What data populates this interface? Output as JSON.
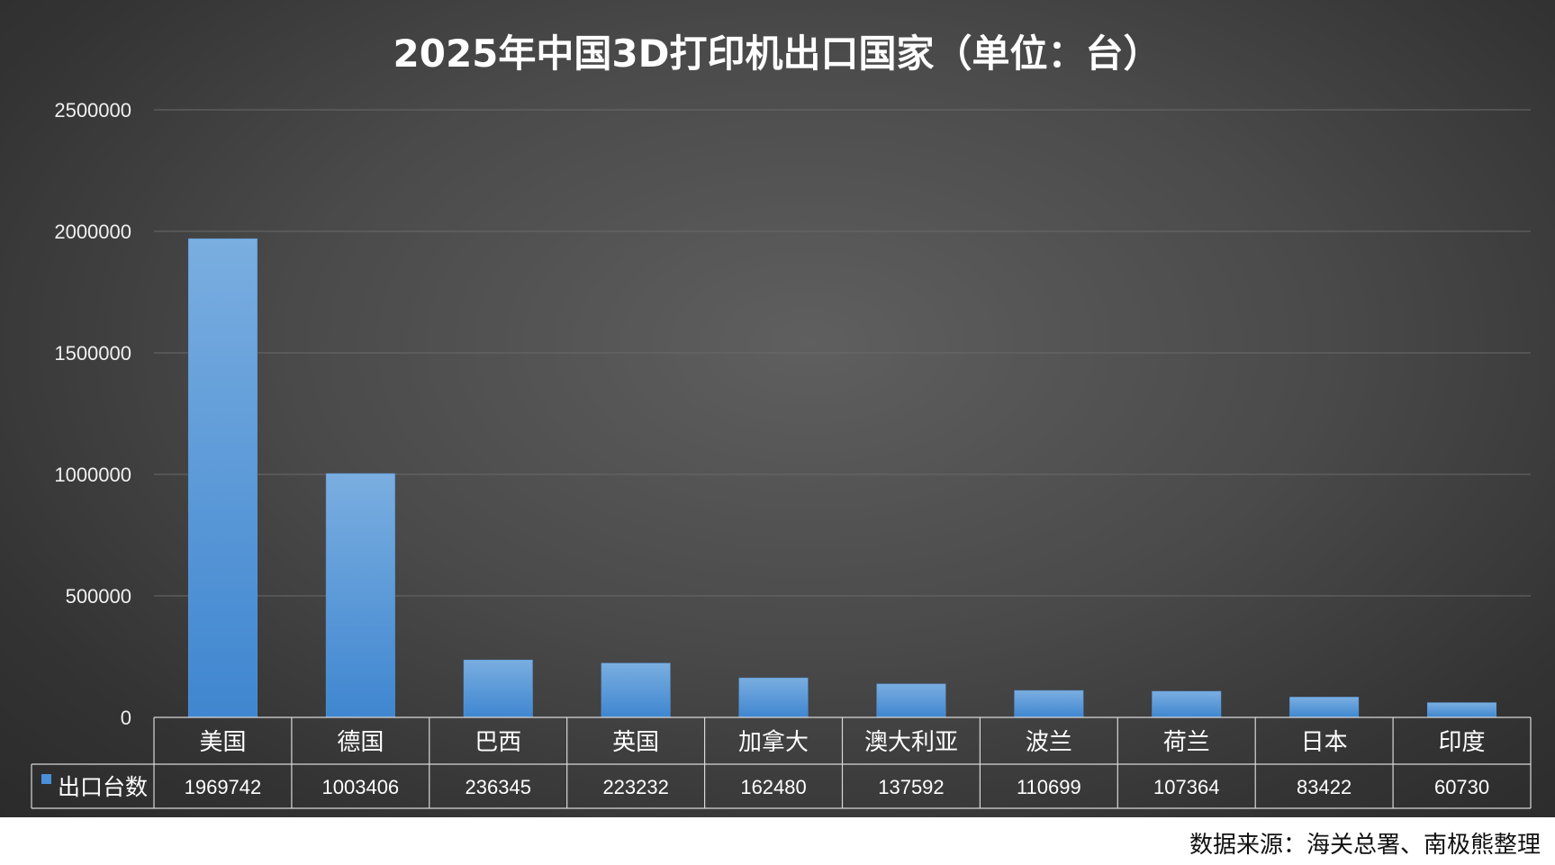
{
  "chart_data": {
    "type": "bar",
    "title": "2025年中国3D打印机出口国家（单位：台）",
    "categories": [
      "美国",
      "德国",
      "巴西",
      "英国",
      "加拿大",
      "澳大利亚",
      "波兰",
      "荷兰",
      "日本",
      "印度"
    ],
    "series": [
      {
        "name": "出口台数",
        "values": [
          1969742,
          1003406,
          236345,
          223232,
          162480,
          137592,
          110699,
          107364,
          83422,
          60730
        ]
      }
    ],
    "ylim": [
      0,
      2500000
    ],
    "yticks": [
      0,
      500000,
      1000000,
      1500000,
      2000000,
      2500000
    ],
    "grid": true,
    "data_table": true,
    "colors": {
      "bar_top": "#7aaee0",
      "bar_bottom": "#3f86d0",
      "legend_marker": "#4a90d9",
      "panel": "#4a4a4a",
      "text": "#ffffff",
      "axis_text": "#f0f0f0",
      "grid": "#6a6a6a"
    }
  },
  "source_note": "数据来源：海关总署、南极熊整理"
}
